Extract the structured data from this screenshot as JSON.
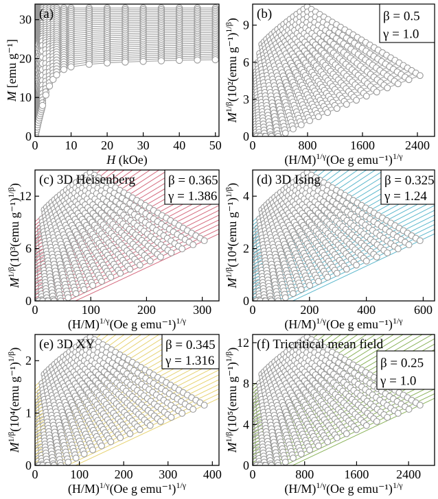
{
  "chart_data": [
    {
      "id": "a",
      "type": "scatter",
      "panel_label": "(a)",
      "xlabel_main": "H",
      "xlabel_rest": " (kOe)",
      "ylabel_main": "M",
      "ylabel_rest": " [emu g⁻¹]",
      "xticks": [
        "0",
        "10",
        "20",
        "30",
        "40",
        "50"
      ],
      "yticks": [
        "0",
        "10",
        "20",
        "30"
      ],
      "xlim": [
        0,
        51
      ],
      "ylim": [
        0,
        34
      ],
      "curves": 30,
      "marker_color": "#999999",
      "line_color": "#999999"
    },
    {
      "id": "b",
      "type": "scatter",
      "panel_label": "(b)",
      "beta": "β = 0.5",
      "gamma": "γ = 1.0",
      "xlabel_main": "(H/M)",
      "xlabel_sup": "1/γ",
      "xlabel_rest": "(Oe g emu⁻¹)",
      "xlabel_sup2": "1/γ",
      "ylabel_main": "M",
      "ylabel_sup": "1/β",
      "ylabel_rest": "(10²(emu g⁻¹)",
      "ylabel_sup2": "1/β",
      "ylabel_end": ")",
      "xticks": [
        "0",
        "800",
        "1600",
        "2400"
      ],
      "yticks": [
        "0",
        "3",
        "6",
        "9"
      ],
      "xlim": [
        0,
        2650
      ],
      "ylim": [
        0,
        10.7
      ],
      "marker_color": "#999999",
      "line_color": "#999999"
    },
    {
      "id": "c",
      "type": "scatter",
      "panel_label": "(c) 3D Heisenberg",
      "beta": "β = 0.365",
      "gamma": "γ = 1.386",
      "xlabel_main": "(H/M)",
      "xlabel_sup": "1/γ",
      "xlabel_rest": "(Oe g emu⁻¹)",
      "xlabel_sup2": "1/γ",
      "ylabel_main": "M",
      "ylabel_sup": "1/β",
      "ylabel_rest": "(10³(emu g⁻¹)",
      "ylabel_sup2": "1/β",
      "ylabel_end": ")",
      "xticks": [
        "0",
        "100",
        "200",
        "300"
      ],
      "yticks": [
        "0",
        "6",
        "12"
      ],
      "xlim": [
        0,
        330
      ],
      "ylim": [
        0,
        15
      ],
      "marker_color": "#999999",
      "line_color": "#d46a7e"
    },
    {
      "id": "d",
      "type": "scatter",
      "panel_label": "(d) 3D Ising",
      "beta": "β = 0.325",
      "gamma": "γ = 1.24",
      "xlabel_main": "(H/M)",
      "xlabel_sup": "1/γ",
      "xlabel_rest": "(Oe g emu⁻¹)",
      "xlabel_sup2": "1/γ",
      "ylabel_main": "M",
      "ylabel_sup": "1/β",
      "ylabel_rest": "(10⁴(emu g⁻¹)",
      "ylabel_sup2": "1/β",
      "ylabel_end": ")",
      "xticks": [
        "0",
        "200",
        "400",
        "600"
      ],
      "yticks": [
        "0",
        "2",
        "4"
      ],
      "xlim": [
        0,
        640
      ],
      "ylim": [
        0,
        5
      ],
      "marker_color": "#999999",
      "line_color": "#5bb7cc"
    },
    {
      "id": "e",
      "type": "scatter",
      "panel_label": "(e) 3D XY",
      "beta": "β = 0.345",
      "gamma": "γ = 1.316",
      "xlabel_main": "(H/M)",
      "xlabel_sup": "1/γ",
      "xlabel_rest": "(Oe g emu⁻¹)",
      "xlabel_sup2": "1/γ",
      "ylabel_main": "M",
      "ylabel_sup": "1/β",
      "ylabel_rest": "(10⁴(emu g⁻¹)",
      "ylabel_sup2": "1/β",
      "ylabel_end": ")",
      "xticks": [
        "0",
        "100",
        "200",
        "300",
        "400"
      ],
      "yticks": [
        "0",
        "1",
        "2"
      ],
      "xlim": [
        0,
        415
      ],
      "ylim": [
        0,
        2.5
      ],
      "marker_color": "#999999",
      "line_color": "#e6d270"
    },
    {
      "id": "f",
      "type": "scatter",
      "panel_label": "(f) Tricritical mean field",
      "beta": "β = 0.25",
      "gamma": "γ = 1.0",
      "xlabel_main": "(H/M)",
      "xlabel_sup": "1/γ",
      "xlabel_rest": "(Oe g emu⁻¹)",
      "xlabel_sup2": "1/γ",
      "ylabel_main": "M",
      "ylabel_sup": "1/β",
      "ylabel_rest": "(10⁵(emu g⁻¹)",
      "ylabel_sup2": "1/β",
      "ylabel_end": ")",
      "xticks": [
        "0",
        "800",
        "1600",
        "2400"
      ],
      "yticks": [
        "0",
        "4",
        "8",
        "12"
      ],
      "xlim": [
        0,
        2800
      ],
      "ylim": [
        0,
        12.8
      ],
      "marker_color": "#999999",
      "line_color": "#8bb35a"
    }
  ]
}
